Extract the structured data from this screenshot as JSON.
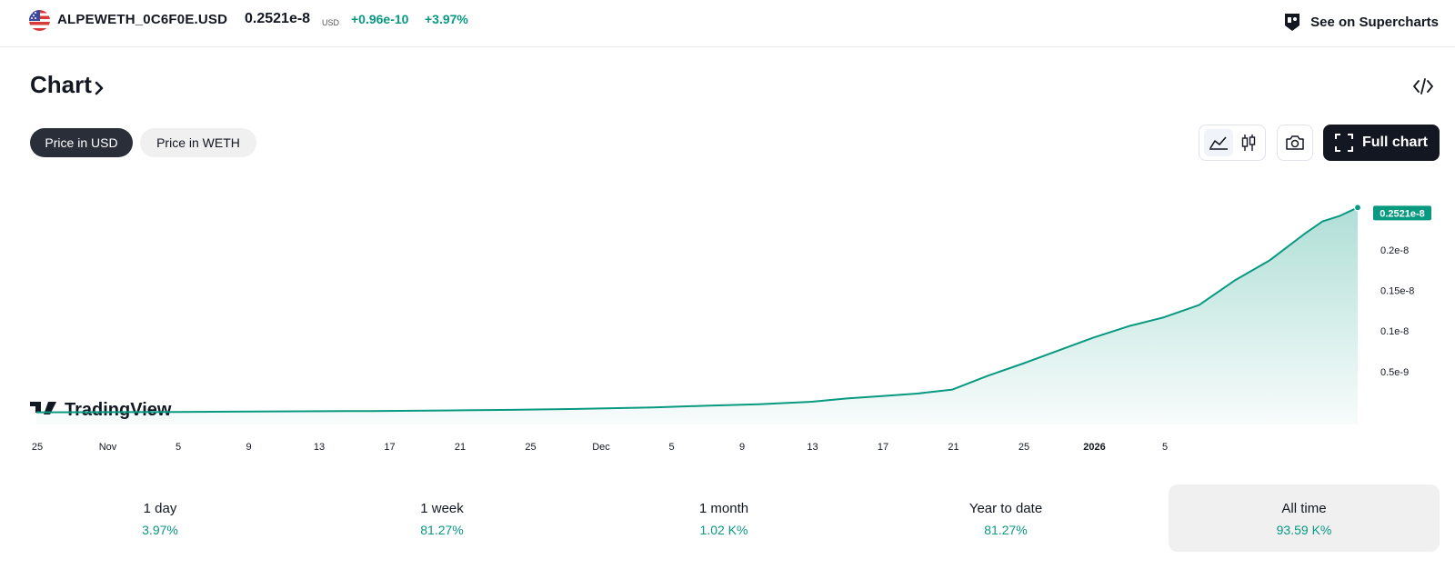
{
  "header": {
    "symbol": "ALPEWETH_0C6F0E.USD",
    "price": "0.2521e-8",
    "currency": "USD",
    "change": "+0.96e-10",
    "change_percent": "+3.97%",
    "supercharts_label": "See on Supercharts"
  },
  "section": {
    "title": "Chart"
  },
  "price_toggle": {
    "options": [
      "Price in USD",
      "Price in WETH"
    ],
    "selected": "Price in USD"
  },
  "toolbar": {
    "chart_style_selected": "area",
    "full_chart_label": "Full chart"
  },
  "watermark": {
    "text": "TradingView"
  },
  "colors": {
    "accent": "#089981",
    "dark": "#131722",
    "pill_active": "#2a2e39"
  },
  "chart_data": {
    "type": "area",
    "x_tick_labels": [
      "25",
      "Nov",
      "5",
      "9",
      "13",
      "17",
      "21",
      "25",
      "Dec",
      "5",
      "9",
      "13",
      "17",
      "21",
      "25",
      "2026",
      "5"
    ],
    "x": [
      "2025-10-25",
      "2025-10-29",
      "2025-11-02",
      "2025-11-05",
      "2025-11-09",
      "2025-11-13",
      "2025-11-17",
      "2025-11-21",
      "2025-11-25",
      "2025-11-29",
      "2025-12-02",
      "2025-12-05",
      "2025-12-08",
      "2025-12-10",
      "2025-12-12",
      "2025-12-14",
      "2025-12-16",
      "2025-12-18",
      "2025-12-20",
      "2025-12-22",
      "2025-12-24",
      "2025-12-26",
      "2025-12-28",
      "2025-12-30",
      "2026-01-01",
      "2026-01-03",
      "2026-01-05",
      "2026-01-06",
      "2026-01-07",
      "2026-01-08"
    ],
    "series": [
      {
        "values": [
          0.0,
          0.002,
          0.004,
          0.008,
          0.012,
          0.016,
          0.022,
          0.03,
          0.042,
          0.06,
          0.08,
          0.1,
          0.13,
          0.17,
          0.2,
          0.23,
          0.28,
          0.45,
          0.6,
          0.76,
          0.92,
          1.06,
          1.17,
          1.32,
          1.62,
          1.87,
          2.2,
          2.35,
          2.42,
          2.521
        ]
      }
    ],
    "y_unit_note": "values in units of 1e-9 USD",
    "y_tick_labels": [
      "0.5e-9",
      "0.1e-8",
      "0.15e-8",
      "0.2e-8"
    ],
    "y_ticks": [
      0.5,
      1.0,
      1.5,
      2.0
    ],
    "ylim": [
      -0.15,
      2.95
    ],
    "last_value_label": "0.2521e-8"
  },
  "performance": [
    {
      "label": "1 day",
      "value": "3.97%"
    },
    {
      "label": "1 week",
      "value": "81.27%"
    },
    {
      "label": "1 month",
      "value": "1.02 K%"
    },
    {
      "label": "Year to date",
      "value": "81.27%"
    },
    {
      "label": "All time",
      "value": "93.59 K%",
      "active": true
    }
  ]
}
